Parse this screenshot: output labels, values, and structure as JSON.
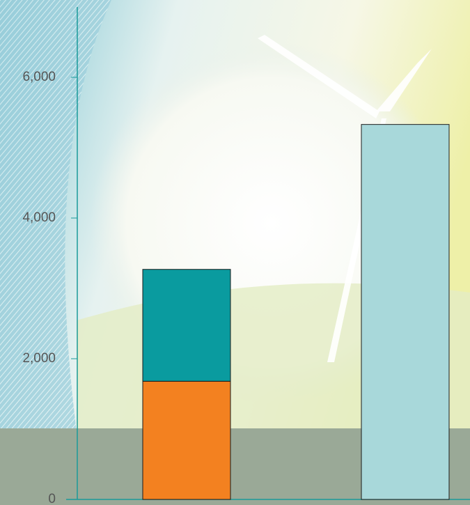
{
  "chart_data": {
    "type": "stacked-bar",
    "categories": [
      null,
      null
    ],
    "series": [
      {
        "color": "#f38120",
        "values": [
          1680,
          null
        ]
      },
      {
        "color": "#0a9b9f",
        "values": [
          1590,
          null
        ]
      },
      {
        "color": "#a8d8da",
        "values": [
          null,
          5330
        ]
      }
    ],
    "ylim": [
      0,
      7000
    ],
    "yticks": [
      0,
      {
        "value": 2000,
        "label": "2,000"
      },
      {
        "value": 4000,
        "label": "4,000"
      },
      {
        "value": 6000,
        "label": "6,000"
      }
    ],
    "axis_color": "#1a9a9a"
  }
}
